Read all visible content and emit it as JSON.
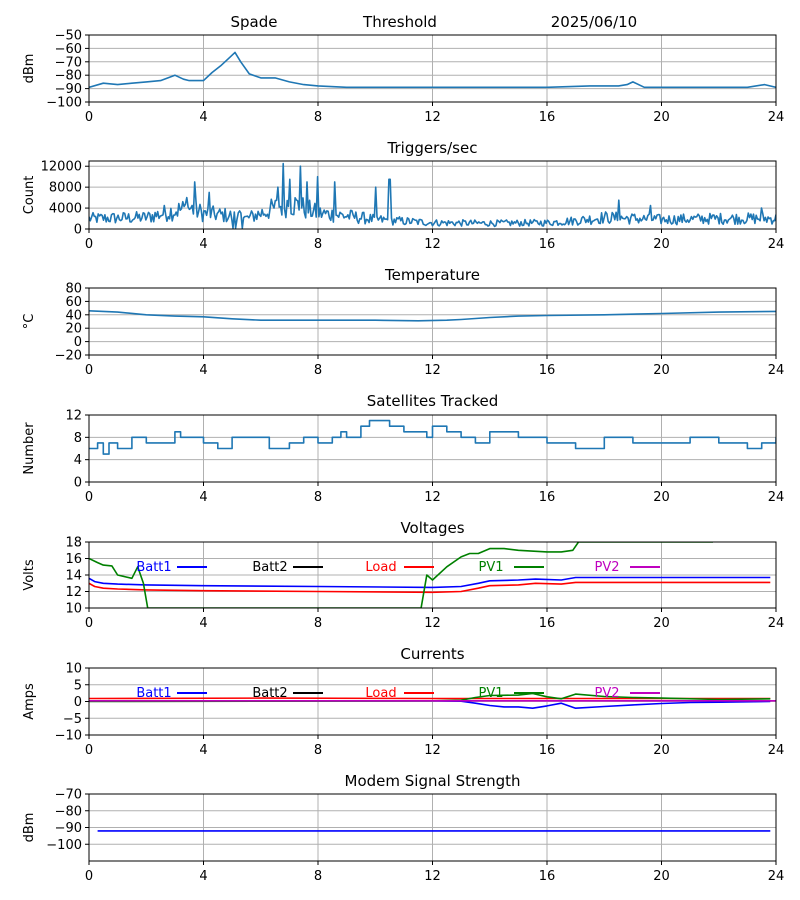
{
  "header": {
    "station": "Spade",
    "mode": "Threshold",
    "date": "2025/06/10"
  },
  "colors": {
    "series": "#1f77b4",
    "batt1": "#0000ff",
    "batt2": "#000000",
    "load": "#ff0000",
    "pv1": "#008000",
    "pv2": "#bf00bf",
    "grid": "#b0b0b0"
  },
  "chart_data": [
    {
      "type": "line",
      "title": "",
      "ylabel": "dBm",
      "xlabel": "",
      "xlim": [
        0,
        24
      ],
      "ylim": [
        -100,
        -50
      ],
      "xticks": [
        0,
        4,
        8,
        12,
        16,
        20,
        24
      ],
      "yticks": [
        -100,
        -90,
        -80,
        -70,
        -60,
        -50
      ],
      "yticklabels": [
        "−100",
        "−90",
        "−80",
        "−70",
        "−60",
        "−50"
      ],
      "series": [
        {
          "color": "#1f77b4",
          "x": [
            0,
            0.5,
            1,
            1.5,
            2,
            2.5,
            3,
            3.3,
            3.5,
            4,
            4.3,
            4.6,
            4.9,
            5.1,
            5.3,
            5.6,
            6,
            6.5,
            7,
            7.5,
            8,
            9,
            10,
            12,
            14,
            16,
            17.5,
            18.5,
            18.8,
            19,
            19.4,
            20,
            22,
            23,
            23.6,
            24
          ],
          "y": [
            -89,
            -86,
            -87,
            -86,
            -85,
            -84,
            -80,
            -83,
            -84,
            -84,
            -78,
            -73,
            -67,
            -63,
            -70,
            -79,
            -82,
            -82,
            -85,
            -87,
            -88,
            -89,
            -89,
            -89,
            -89,
            -89,
            -88,
            -88,
            -87,
            -85,
            -89,
            -89,
            -89,
            -89,
            -87,
            -89
          ]
        }
      ]
    },
    {
      "type": "line",
      "title": "Triggers/sec",
      "ylabel": "Count",
      "xlabel": "",
      "xlim": [
        0,
        24
      ],
      "ylim": [
        0,
        13000
      ],
      "xticks": [
        0,
        4,
        8,
        12,
        16,
        20,
        24
      ],
      "yticks": [
        0,
        4000,
        8000,
        12000
      ],
      "series": [
        {
          "color": "#1f77b4",
          "noisy": true,
          "x": [
            0,
            2,
            3,
            3.5,
            4,
            5,
            5.5,
            6.5,
            7,
            7.5,
            8,
            9,
            10,
            11,
            12,
            14,
            16,
            17,
            18,
            19,
            20,
            22,
            24
          ],
          "y": [
            2000,
            2200,
            3500,
            4000,
            3000,
            2500,
            2000,
            4000,
            5000,
            4000,
            3000,
            2500,
            1800,
            1500,
            1200,
            1100,
            1200,
            1600,
            2200,
            2000,
            1800,
            2000,
            2000
          ],
          "spikes": [
            [
              3.4,
              6000
            ],
            [
              3.7,
              9000
            ],
            [
              4.2,
              7000
            ],
            [
              6.6,
              8000
            ],
            [
              6.8,
              12500
            ],
            [
              7.0,
              9500
            ],
            [
              7.4,
              12000
            ],
            [
              7.6,
              9000
            ],
            [
              8.0,
              10000
            ],
            [
              8.6,
              9000
            ],
            [
              10.0,
              8000
            ],
            [
              10.5,
              9500
            ],
            [
              18.5,
              5500
            ],
            [
              19.6,
              4500
            ],
            [
              23.5,
              4000
            ]
          ]
        }
      ]
    },
    {
      "type": "line",
      "title": "Temperature",
      "ylabel": "°C",
      "xlabel": "",
      "xlim": [
        0,
        24
      ],
      "ylim": [
        -20,
        80
      ],
      "xticks": [
        0,
        4,
        8,
        12,
        16,
        20,
        24
      ],
      "yticks": [
        -20,
        0,
        20,
        40,
        60,
        80
      ],
      "yticklabels": [
        "−20",
        "0",
        "20",
        "40",
        "60",
        "80"
      ],
      "series": [
        {
          "color": "#1f77b4",
          "x": [
            0,
            1,
            2,
            3,
            4,
            5,
            6,
            8,
            10,
            11.5,
            12.5,
            13,
            14,
            15,
            16,
            18,
            20,
            22,
            24
          ],
          "y": [
            46,
            44,
            40,
            38,
            37,
            34,
            32,
            32,
            32,
            31,
            32,
            33,
            36,
            38,
            39,
            40,
            42,
            44,
            45
          ]
        }
      ]
    },
    {
      "type": "line",
      "title": "Satellites Tracked",
      "ylabel": "Number",
      "xlabel": "",
      "xlim": [
        0,
        24
      ],
      "ylim": [
        0,
        12
      ],
      "xticks": [
        0,
        4,
        8,
        12,
        16,
        20,
        24
      ],
      "yticks": [
        0,
        4,
        8,
        12
      ],
      "series": [
        {
          "color": "#1f77b4",
          "step": true,
          "x": [
            0,
            0.3,
            0.5,
            0.7,
            1,
            1.5,
            2,
            3,
            3.2,
            4,
            4.5,
            5,
            6,
            6.3,
            7,
            7.5,
            8,
            8.5,
            8.8,
            9,
            9.5,
            9.8,
            10.5,
            11,
            11.8,
            12,
            12.5,
            13,
            13.5,
            14,
            15,
            16,
            16.5,
            17,
            18,
            19,
            19.5,
            20,
            21,
            22,
            23,
            23.5,
            24
          ],
          "y": [
            6,
            7,
            5,
            7,
            6,
            8,
            7,
            9,
            8,
            7,
            6,
            8,
            8,
            6,
            7,
            8,
            7,
            8,
            9,
            8,
            10,
            11,
            10,
            9,
            8,
            10,
            9,
            8,
            7,
            9,
            8,
            7,
            7,
            6,
            8,
            7,
            7,
            7,
            8,
            7,
            6,
            7,
            8
          ]
        }
      ]
    },
    {
      "type": "line",
      "title": "Voltages",
      "ylabel": "Volts",
      "xlabel": "",
      "xlim": [
        0,
        24
      ],
      "ylim": [
        10,
        18
      ],
      "xticks": [
        0,
        4,
        8,
        12,
        16,
        20,
        24
      ],
      "yticks": [
        10,
        12,
        14,
        16,
        18
      ],
      "legend": [
        "Batt1",
        "Batt2",
        "Load",
        "PV1",
        "PV2"
      ],
      "series": [
        {
          "name": "Batt1",
          "color": "#0000ff",
          "x": [
            0,
            0.2,
            0.5,
            1,
            2,
            4,
            8,
            12,
            13,
            13.6,
            14,
            15,
            15.6,
            16.5,
            17,
            18,
            20,
            22,
            23.8
          ],
          "y": [
            13.6,
            13.2,
            13.0,
            12.9,
            12.8,
            12.7,
            12.6,
            12.5,
            12.6,
            13.0,
            13.3,
            13.4,
            13.5,
            13.4,
            13.7,
            13.7,
            13.7,
            13.7,
            13.7
          ]
        },
        {
          "name": "Batt2",
          "color": "#000000",
          "x": [],
          "y": []
        },
        {
          "name": "Load",
          "color": "#ff0000",
          "x": [
            0,
            0.2,
            0.5,
            1,
            2,
            4,
            8,
            12,
            13,
            13.6,
            14,
            15,
            15.6,
            16.5,
            17,
            18,
            20,
            22,
            23.8
          ],
          "y": [
            13.0,
            12.6,
            12.4,
            12.3,
            12.2,
            12.1,
            12.0,
            11.9,
            12.0,
            12.4,
            12.7,
            12.8,
            13.0,
            12.9,
            13.1,
            13.1,
            13.1,
            13.1,
            13.1
          ]
        },
        {
          "name": "PV1",
          "color": "#008000",
          "x": [
            0,
            0.3,
            0.5,
            0.8,
            1,
            1.5,
            1.7,
            1.9,
            2.05,
            11.6,
            11.8,
            12,
            12.5,
            13,
            13.3,
            13.6,
            14,
            14.5,
            15,
            16,
            16.5,
            16.9,
            17.1,
            21.8
          ],
          "y": [
            16,
            15.5,
            15.2,
            15.1,
            14,
            13.6,
            15.0,
            13.0,
            10.0,
            10.0,
            14.0,
            13.4,
            15.0,
            16.2,
            16.6,
            16.6,
            17.2,
            17.2,
            17.0,
            16.8,
            16.8,
            17.0,
            18.0,
            18.0
          ]
        },
        {
          "name": "PV2",
          "color": "#bf00bf",
          "x": [],
          "y": []
        }
      ]
    },
    {
      "type": "line",
      "title": "Currents",
      "ylabel": "Amps",
      "xlabel": "",
      "xlim": [
        0,
        24
      ],
      "ylim": [
        -10,
        10
      ],
      "xticks": [
        0,
        4,
        8,
        12,
        16,
        20,
        24
      ],
      "yticks": [
        -10,
        -5,
        0,
        5,
        10
      ],
      "yticklabels": [
        "−10",
        "−5",
        "0",
        "5",
        "10"
      ],
      "legend": [
        "Batt1",
        "Batt2",
        "Load",
        "PV1",
        "PV2"
      ],
      "series": [
        {
          "name": "Batt1",
          "color": "#0000ff",
          "x": [
            0,
            12,
            13,
            13.5,
            14,
            14.5,
            15,
            15.5,
            16,
            16.5,
            17,
            18,
            19,
            20,
            21,
            22,
            23.8
          ],
          "y": [
            0.2,
            0.2,
            0.1,
            -0.5,
            -1.2,
            -1.6,
            -1.6,
            -2.0,
            -1.3,
            -0.5,
            -2.0,
            -1.5,
            -1.0,
            -0.6,
            -0.3,
            -0.2,
            0.0
          ]
        },
        {
          "name": "Batt2",
          "color": "#000000",
          "x": [],
          "y": []
        },
        {
          "name": "Load",
          "color": "#ff0000",
          "x": [
            0,
            6,
            12,
            16,
            20,
            23.8
          ],
          "y": [
            0.9,
            1.0,
            0.9,
            0.9,
            0.9,
            0.9
          ]
        },
        {
          "name": "PV1",
          "color": "#008000",
          "x": [
            0,
            12,
            13,
            13.5,
            14,
            15,
            15.5,
            16,
            16.5,
            17,
            18,
            19,
            20,
            22,
            23.8
          ],
          "y": [
            0.0,
            0.2,
            0.4,
            1.2,
            1.8,
            1.9,
            2.4,
            1.4,
            0.8,
            2.2,
            1.5,
            1.2,
            1.0,
            0.6,
            0.8
          ]
        },
        {
          "name": "PV2",
          "color": "#bf00bf",
          "x": [
            0,
            24
          ],
          "y": [
            0.2,
            0.2
          ]
        }
      ]
    },
    {
      "type": "line",
      "title": "Modem Signal Strength",
      "ylabel": "dBm",
      "xlabel": "",
      "xlim": [
        0,
        24
      ],
      "ylim": [
        -110,
        -70
      ],
      "xticks": [
        0,
        4,
        8,
        12,
        16,
        20,
        24
      ],
      "yticks": [
        -100,
        -90,
        -80,
        -70
      ],
      "yticklabels": [
        "−100",
        "−90",
        "−80",
        "−70"
      ],
      "series": [
        {
          "color": "#0000ff",
          "x": [
            0.3,
            23.8
          ],
          "y": [
            -92,
            -92
          ]
        }
      ]
    }
  ]
}
